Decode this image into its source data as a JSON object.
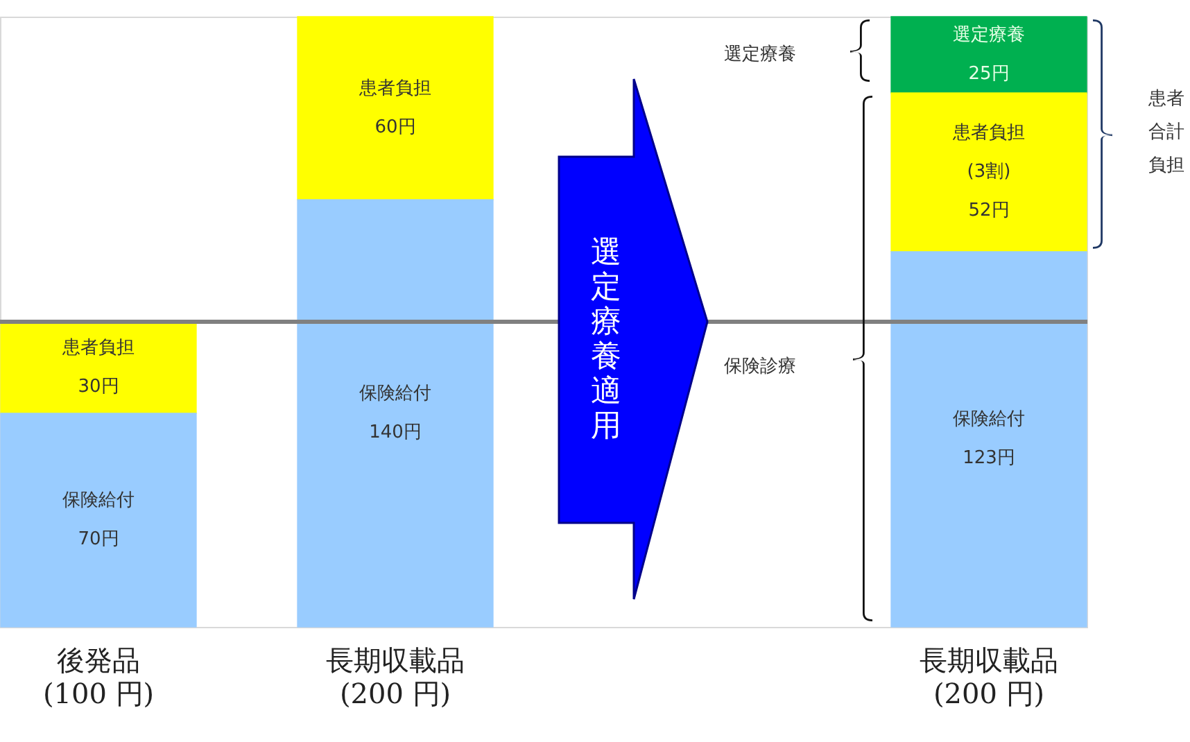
{
  "chart_data": {
    "type": "bar",
    "stacked": true,
    "categories": [
      "後発品\n(100 円)",
      "長期収載品\n(200 円)",
      null,
      "長期収載品\n(200 円)"
    ],
    "series": [
      {
        "name": "保険給付",
        "color": "#99ccff",
        "values": [
          70,
          140,
          null,
          123
        ],
        "value_labels": [
          "70円",
          "140円",
          null,
          "123円"
        ]
      },
      {
        "name": "患者負担",
        "color": "#ffff00",
        "values": [
          30,
          60,
          null,
          52
        ],
        "value_labels": [
          "30円",
          "60円",
          null,
          "(3割)\n52円"
        ]
      },
      {
        "name": "選定療養",
        "color": "#00b050",
        "values": [
          null,
          null,
          null,
          25
        ],
        "value_labels": [
          null,
          null,
          null,
          "25円"
        ]
      }
    ],
    "ylim": [
      0,
      200
    ],
    "tick_labels": "x",
    "grid": false,
    "legend": false,
    "ref_lines": [
      {
        "axis": "y",
        "value": 100,
        "color": "#808080"
      }
    ],
    "annotations": [
      "選定療養適用",
      "選定療養",
      "保険診療",
      "患者合計負担"
    ]
  }
}
